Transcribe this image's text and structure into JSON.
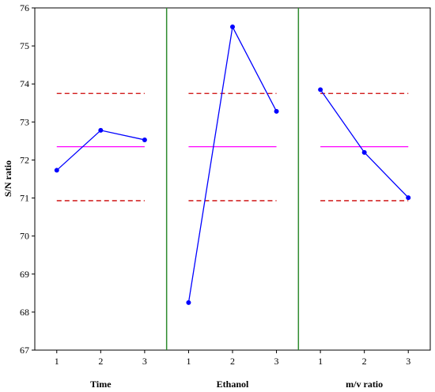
{
  "chart_data": {
    "type": "line",
    "ylabel": "S/N ratio",
    "ylim": [
      67,
      76
    ],
    "yticks": [
      67,
      68,
      69,
      70,
      71,
      72,
      73,
      74,
      75,
      76
    ],
    "x_ticks": [
      "1",
      "2",
      "3"
    ],
    "reference_lines": {
      "mean": 72.35,
      "upper_limit": 73.75,
      "lower_limit": 70.93
    },
    "panels": [
      {
        "label": "Time",
        "values": [
          71.73,
          72.78,
          72.53
        ]
      },
      {
        "label": "Ethanol",
        "values": [
          68.25,
          75.5,
          73.28
        ]
      },
      {
        "label": "m/v ratio",
        "values": [
          73.85,
          72.2,
          71.01
        ]
      }
    ],
    "colors": {
      "series": "#0000ff",
      "mean_line": "#ff00ff",
      "limit_lines": "#cc0000",
      "separator": "#2e8b2e"
    }
  }
}
